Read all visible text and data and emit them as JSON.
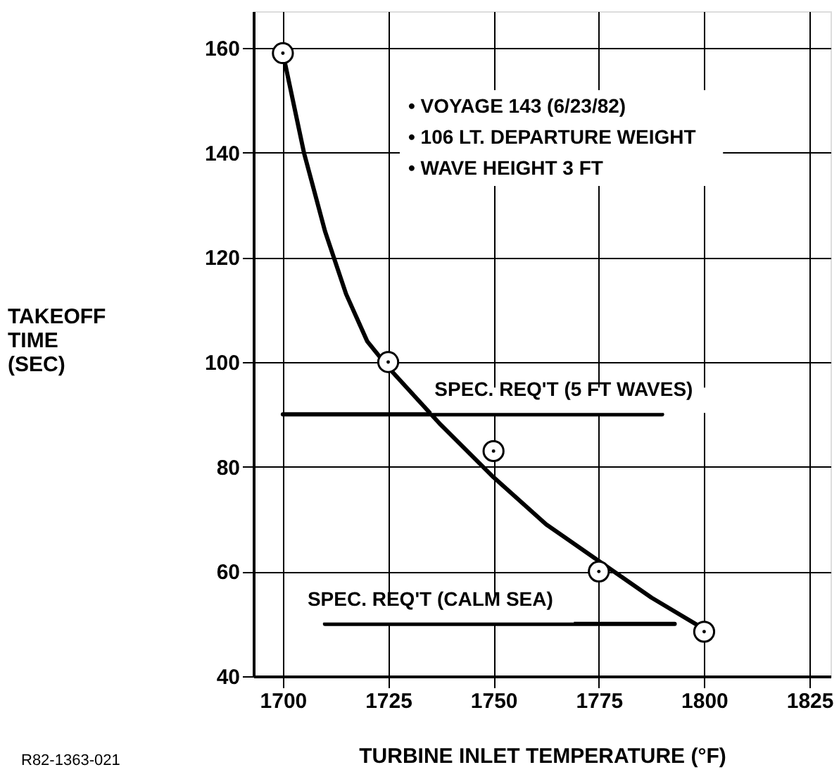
{
  "chart_data": {
    "type": "scatter",
    "xlabel": "TURBINE INLET TEMPERATURE (°F)",
    "ylabel": "TAKEOFF TIME (SEC)",
    "xlim": [
      1693,
      1830
    ],
    "ylim": [
      40,
      167
    ],
    "xticks": [
      1700,
      1725,
      1750,
      1775,
      1800,
      1825
    ],
    "yticks": [
      40,
      60,
      80,
      100,
      120,
      140,
      160
    ],
    "grid": true,
    "annotations": [
      "• VOYAGE 143 (6/23/82)",
      "• 106 LT. DEPARTURE WEIGHT",
      "• WAVE HEIGHT 3 FT",
      "R82-1363-021"
    ],
    "series": [
      {
        "type": "line",
        "color": "#000000",
        "x": [
          1700,
          1705,
          1710,
          1715,
          1720,
          1725,
          1737.5,
          1750,
          1762.5,
          1775,
          1787.5,
          1800
        ],
        "values": [
          159,
          140,
          125,
          113,
          104,
          99,
          88,
          78,
          69,
          62,
          55,
          49
        ]
      },
      {
        "color": "#000000",
        "marker": "circle",
        "x": [
          1700,
          1725,
          1750,
          1775,
          1800
        ],
        "values": [
          159,
          100,
          83,
          60,
          48.5
        ]
      },
      {
        "type": "line",
        "name": "SPEC. REQ'T (5 FT WAVES)",
        "color": "#000000",
        "x": [
          1700,
          1790
        ],
        "values": [
          90,
          90
        ]
      },
      {
        "type": "line",
        "name": "SPEC. REQ'T (CALM SEA)",
        "color": "#000000",
        "x": [
          1710,
          1793
        ],
        "values": [
          50,
          50
        ]
      }
    ]
  }
}
